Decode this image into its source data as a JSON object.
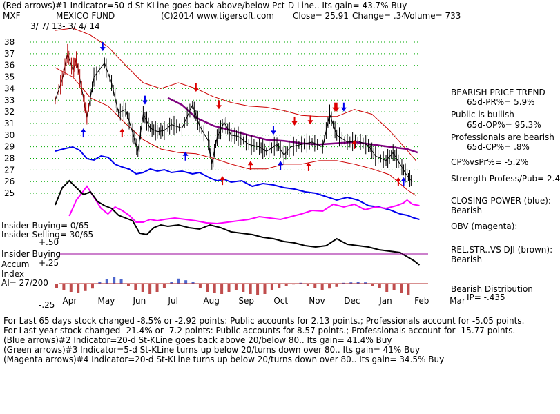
{
  "header": {
    "line1": "(Red arrows)#1 Indicator=50-d St-KLine goes back above/below Pct-D Line.. Its gain= 43.7% Buy",
    "ticker": "MXF",
    "fund_name": "MEXICO FUND",
    "copyright": "(C)2014 www.tigersoft.com",
    "close": "Close=  25.91",
    "change": "Change= .34",
    "volume": "Volume= 733",
    "date_range": "3/ 7/ 13- 3/ 4/ 14"
  },
  "chart_data": {
    "type": "line",
    "title": "MEXICO FUND",
    "ylim": [
      24.5,
      38.5
    ],
    "yticks": [
      "38",
      "37",
      "36",
      "35",
      "34",
      "33",
      "32",
      "31",
      "30",
      "29",
      "28",
      "27",
      "26",
      "25"
    ],
    "ytick_values": [
      38,
      37,
      36,
      35,
      34,
      33,
      32,
      31,
      30,
      29,
      28,
      27,
      26,
      25
    ],
    "months": [
      "Apr",
      "May",
      "Jun",
      "Jul",
      "Aug",
      "Sep",
      "Oct",
      "Nov",
      "Dec",
      "Jan",
      "Feb",
      "Mar"
    ],
    "month_index": [
      0.05,
      1.05,
      2.05,
      3.05,
      4.05,
      5.05,
      6.05,
      7.05,
      8.05,
      9.05,
      10.05,
      11.05
    ],
    "x_range": [
      0,
      11.3
    ],
    "price": [
      [
        0,
        33.0
      ],
      [
        0.2,
        34.8
      ],
      [
        0.35,
        37.0
      ],
      [
        0.5,
        35.6
      ],
      [
        0.6,
        36.5
      ],
      [
        0.8,
        33.2
      ],
      [
        0.9,
        31.5
      ],
      [
        1.1,
        35.0
      ],
      [
        1.4,
        36.2
      ],
      [
        1.6,
        34.5
      ],
      [
        1.8,
        31.9
      ],
      [
        2.0,
        32.2
      ],
      [
        2.2,
        30.2
      ],
      [
        2.35,
        28.6
      ],
      [
        2.5,
        31.8
      ],
      [
        2.7,
        30.6
      ],
      [
        2.9,
        30.3
      ],
      [
        3.1,
        30.4
      ],
      [
        3.3,
        30.9
      ],
      [
        3.6,
        30.6
      ],
      [
        3.9,
        32.6
      ],
      [
        4.1,
        30.8
      ],
      [
        4.35,
        29.5
      ],
      [
        4.45,
        27.5
      ],
      [
        4.6,
        29.8
      ],
      [
        4.8,
        31.1
      ],
      [
        5.0,
        30.0
      ],
      [
        5.2,
        29.9
      ],
      [
        5.5,
        29.2
      ],
      [
        5.8,
        29.0
      ],
      [
        6.0,
        28.6
      ],
      [
        6.3,
        29.2
      ],
      [
        6.5,
        28.3
      ],
      [
        6.7,
        29.0
      ],
      [
        7.0,
        29.2
      ],
      [
        7.3,
        29.4
      ],
      [
        7.6,
        29.0
      ],
      [
        7.8,
        31.8
      ],
      [
        8.0,
        30.0
      ],
      [
        8.3,
        29.4
      ],
      [
        8.6,
        29.5
      ],
      [
        8.9,
        29.1
      ],
      [
        9.1,
        28.2
      ],
      [
        9.4,
        27.8
      ],
      [
        9.6,
        28.5
      ],
      [
        9.8,
        27.5
      ],
      [
        10.0,
        26.5
      ],
      [
        10.15,
        26.0
      ]
    ],
    "upper_band": [
      [
        0,
        39.0
      ],
      [
        0.5,
        39.2
      ],
      [
        1.0,
        38.6
      ],
      [
        1.5,
        37.6
      ],
      [
        2.0,
        36.0
      ],
      [
        2.5,
        34.5
      ],
      [
        3.0,
        34.0
      ],
      [
        3.5,
        34.5
      ],
      [
        4.0,
        34.0
      ],
      [
        4.5,
        33.3
      ],
      [
        5.0,
        32.8
      ],
      [
        5.5,
        32.5
      ],
      [
        6.0,
        32.4
      ],
      [
        6.5,
        32.1
      ],
      [
        7.0,
        31.7
      ],
      [
        7.5,
        31.6
      ],
      [
        8.0,
        31.6
      ],
      [
        8.5,
        32.2
      ],
      [
        9.0,
        31.8
      ],
      [
        9.5,
        30.4
      ],
      [
        10.0,
        28.7
      ],
      [
        10.25,
        27.8
      ]
    ],
    "lower_band": [
      [
        0,
        35.8
      ],
      [
        0.5,
        35.0
      ],
      [
        1.0,
        33.2
      ],
      [
        1.5,
        32.5
      ],
      [
        2.0,
        31.0
      ],
      [
        2.5,
        29.6
      ],
      [
        3.0,
        28.8
      ],
      [
        3.5,
        28.5
      ],
      [
        4.0,
        28.4
      ],
      [
        4.5,
        28.0
      ],
      [
        5.0,
        27.5
      ],
      [
        5.5,
        27.1
      ],
      [
        6.0,
        27.1
      ],
      [
        6.5,
        27.5
      ],
      [
        7.0,
        27.5
      ],
      [
        7.5,
        27.8
      ],
      [
        8.0,
        27.8
      ],
      [
        8.5,
        27.5
      ],
      [
        9.0,
        27.1
      ],
      [
        9.5,
        26.6
      ],
      [
        10.0,
        25.3
      ],
      [
        10.25,
        24.8
      ]
    ],
    "ma_purple": [
      [
        3.2,
        33.2
      ],
      [
        3.6,
        32.6
      ],
      [
        4.0,
        31.5
      ],
      [
        4.5,
        30.8
      ],
      [
        5.0,
        30.4
      ],
      [
        5.5,
        30.0
      ],
      [
        6.0,
        29.6
      ],
      [
        6.5,
        29.5
      ],
      [
        7.0,
        29.3
      ],
      [
        7.5,
        29.2
      ],
      [
        8.0,
        29.3
      ],
      [
        8.5,
        29.4
      ],
      [
        9.0,
        29.2
      ],
      [
        9.5,
        29.0
      ],
      [
        10.0,
        28.8
      ],
      [
        10.3,
        28.5
      ]
    ],
    "closing_power_blue": [
      [
        0,
        219
      ],
      [
        0.3,
        215
      ],
      [
        0.5,
        213
      ],
      [
        0.7,
        218
      ],
      [
        0.9,
        230
      ],
      [
        1.1,
        232
      ],
      [
        1.3,
        226
      ],
      [
        1.5,
        228
      ],
      [
        1.7,
        238
      ],
      [
        1.9,
        242
      ],
      [
        2.1,
        245
      ],
      [
        2.3,
        252
      ],
      [
        2.5,
        250
      ],
      [
        2.7,
        245
      ],
      [
        2.9,
        248
      ],
      [
        3.1,
        246
      ],
      [
        3.3,
        250
      ],
      [
        3.6,
        248
      ],
      [
        3.9,
        252
      ],
      [
        4.1,
        250
      ],
      [
        4.4,
        258
      ],
      [
        4.6,
        262
      ],
      [
        4.8,
        260
      ],
      [
        5.0,
        264
      ],
      [
        5.3,
        262
      ],
      [
        5.6,
        270
      ],
      [
        5.9,
        266
      ],
      [
        6.2,
        268
      ],
      [
        6.5,
        272
      ],
      [
        6.8,
        274
      ],
      [
        7.1,
        278
      ],
      [
        7.4,
        280
      ],
      [
        7.7,
        285
      ],
      [
        8.0,
        290
      ],
      [
        8.3,
        286
      ],
      [
        8.6,
        290
      ],
      [
        8.9,
        298
      ],
      [
        9.2,
        300
      ],
      [
        9.5,
        304
      ],
      [
        9.8,
        310
      ],
      [
        10.0,
        312
      ],
      [
        10.2,
        316
      ],
      [
        10.35,
        318
      ]
    ],
    "obv_magenta": [
      [
        0.4,
        313
      ],
      [
        0.6,
        290
      ],
      [
        0.9,
        270
      ],
      [
        1.1,
        286
      ],
      [
        1.3,
        302
      ],
      [
        1.5,
        310
      ],
      [
        1.7,
        300
      ],
      [
        1.9,
        305
      ],
      [
        2.1,
        312
      ],
      [
        2.3,
        322
      ],
      [
        2.5,
        322
      ],
      [
        2.7,
        318
      ],
      [
        2.9,
        320
      ],
      [
        3.1,
        318
      ],
      [
        3.4,
        316
      ],
      [
        3.7,
        318
      ],
      [
        4.0,
        320
      ],
      [
        4.3,
        323
      ],
      [
        4.6,
        324
      ],
      [
        4.9,
        322
      ],
      [
        5.2,
        320
      ],
      [
        5.5,
        318
      ],
      [
        5.8,
        314
      ],
      [
        6.1,
        316
      ],
      [
        6.4,
        318
      ],
      [
        6.7,
        314
      ],
      [
        7.0,
        310
      ],
      [
        7.3,
        305
      ],
      [
        7.6,
        306
      ],
      [
        7.9,
        296
      ],
      [
        8.2,
        300
      ],
      [
        8.5,
        296
      ],
      [
        8.8,
        304
      ],
      [
        9.1,
        300
      ],
      [
        9.4,
        302
      ],
      [
        9.7,
        298
      ],
      [
        9.9,
        294
      ],
      [
        10.0,
        290
      ],
      [
        10.15,
        296
      ],
      [
        10.35,
        298
      ]
    ],
    "relstr_black": [
      [
        0,
        297
      ],
      [
        0.2,
        272
      ],
      [
        0.4,
        262
      ],
      [
        0.6,
        272
      ],
      [
        0.8,
        282
      ],
      [
        1.0,
        278
      ],
      [
        1.2,
        292
      ],
      [
        1.4,
        298
      ],
      [
        1.6,
        302
      ],
      [
        1.8,
        312
      ],
      [
        2.0,
        316
      ],
      [
        2.2,
        320
      ],
      [
        2.4,
        338
      ],
      [
        2.6,
        340
      ],
      [
        2.8,
        330
      ],
      [
        3.0,
        326
      ],
      [
        3.2,
        328
      ],
      [
        3.5,
        326
      ],
      [
        3.8,
        330
      ],
      [
        4.1,
        332
      ],
      [
        4.4,
        326
      ],
      [
        4.7,
        330
      ],
      [
        5.0,
        336
      ],
      [
        5.3,
        338
      ],
      [
        5.6,
        340
      ],
      [
        5.9,
        344
      ],
      [
        6.2,
        346
      ],
      [
        6.5,
        350
      ],
      [
        6.8,
        352
      ],
      [
        7.1,
        356
      ],
      [
        7.4,
        358
      ],
      [
        7.7,
        356
      ],
      [
        8.0,
        346
      ],
      [
        8.3,
        354
      ],
      [
        8.6,
        356
      ],
      [
        8.9,
        358
      ],
      [
        9.2,
        362
      ],
      [
        9.5,
        364
      ],
      [
        9.8,
        366
      ],
      [
        10.0,
        372
      ],
      [
        10.2,
        378
      ],
      [
        10.35,
        384
      ]
    ],
    "accum_index_bars": [
      -0.1,
      -0.15,
      -0.2,
      -0.22,
      -0.18,
      -0.12,
      0.05,
      0.1,
      0.15,
      0.1,
      -0.05,
      -0.15,
      -0.2,
      -0.25,
      -0.2,
      -0.1,
      0.05,
      0.12,
      0.08,
      0.04,
      -0.1,
      -0.2,
      -0.22,
      -0.25,
      -0.2,
      -0.15,
      -0.2,
      -0.25,
      -0.28,
      -0.25,
      -0.15,
      -0.1,
      -0.05,
      -0.02,
      0.02,
      -0.05,
      -0.1,
      -0.15,
      -0.12,
      -0.08,
      0.02,
      0.03,
      0.05,
      0.03,
      -0.05,
      -0.1,
      -0.2,
      -0.15,
      -0.22,
      -0.28
    ],
    "accum_ylabels": [
      ".50",
      ".25",
      "-.25"
    ],
    "red_down_arrows": [
      [
        4.0,
        33.9
      ],
      [
        4.65,
        32.4
      ],
      [
        8.0,
        32.2
      ],
      [
        6.8,
        31.0
      ],
      [
        7.25,
        31.1
      ],
      [
        7.95,
        32.2
      ]
    ],
    "blue_down_arrows": [
      [
        1.35,
        37.4
      ],
      [
        2.55,
        32.8
      ],
      [
        6.2,
        30.2
      ],
      [
        8.2,
        32.2
      ]
    ],
    "blue_up_arrows": [
      [
        0.8,
        30.4
      ],
      [
        3.7,
        28.4
      ],
      [
        6.4,
        27.6
      ],
      [
        9.9,
        26.2
      ]
    ],
    "red_up_arrows": [
      [
        1.9,
        30.4
      ],
      [
        4.75,
        26.3
      ],
      [
        5.55,
        27.6
      ],
      [
        7.2,
        27.5
      ],
      [
        8.5,
        29.4
      ],
      [
        9.75,
        26.2
      ]
    ]
  },
  "left_labels": {
    "insider_buying": "Insider Buying= 0/65",
    "insider_selling": "Insider Selling= 30/65",
    "plus50": "+.50",
    "insider_buying2": "Insider Buying",
    "accum": "Accum",
    "plus25": "+.25",
    "index": "Index",
    "ai": "AI= 27/200",
    "minus25": "-.25"
  },
  "right_panel": {
    "trend_title": "BEARISH PRICE TREND",
    "pr": "65d-PR%= 5.9%",
    "public": "Public is bullish",
    "op": "65d-OP%= 95.3%",
    "prof": "Professionals are bearish",
    "cp": "65d-CP%= .8%",
    "cpvspr": "CP%vsPr%= -5.2%",
    "strength": "Strength Profess/Pub= 2.4",
    "closing_power": "CLOSING POWER (blue):",
    "bearish1": "Bearish",
    "obv": "OBV (magenta):",
    "relstr": "REL.STR..VS DJI (brown):",
    "bearish2": "Bearish",
    "distribution": "Bearish Distribution",
    "ip": "IP= -.435"
  },
  "footer": {
    "line1": "For Last 65 days stock changed -8.5% or -2.92 points:  Public accounts for  2.13 points.;  Professionals account for -5.05 points.",
    "line2": "For Last year stock changed -21.4% or -7.2 points:  Public accounts for  8.57 points.;  Professionals account for -15.77 points.",
    "line3": "(Blue arrows)#2 Indicator=20-d St-KLine goes back above 20/below 80.. Its gain= 41.4% Buy",
    "line4": "(Green arrows)#3 Indicator=5-d St-KLine turns up below 20/turns down over 80.. Its gain= 41% Buy",
    "line5": "(Magenta arrows)#4 Indicator=20-d St-KLine turns up below 20/turns down over 80.. Its gain= 34.5% Buy"
  },
  "colors": {
    "price": "#000000",
    "band_red": "#cc0000",
    "ma_purple": "#800080",
    "closing_power": "#0000ee",
    "obv": "#ff00ff",
    "grid": "#00aa00",
    "accum_bar": "#b02020",
    "accum_pos": "#2040c0",
    "arrow_red": "#dd0000",
    "arrow_blue": "#0000ee"
  }
}
